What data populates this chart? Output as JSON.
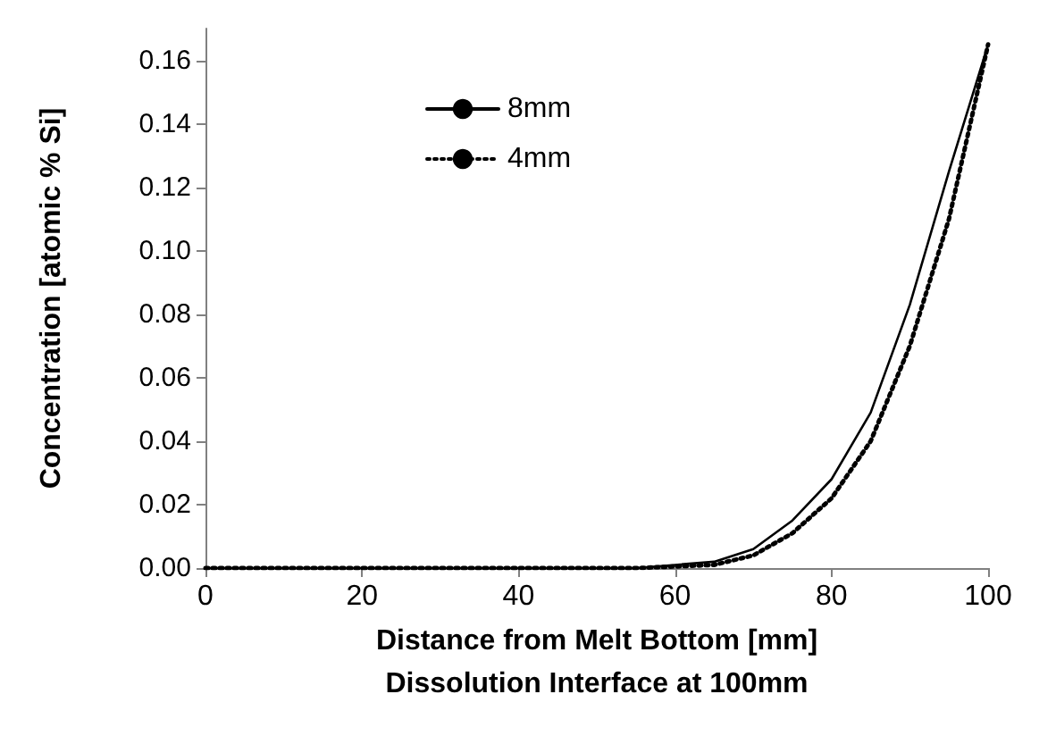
{
  "chart_data": {
    "type": "line",
    "xlabel": "Distance from Melt Bottom [mm]\nDissolution Interface at 100mm",
    "ylabel": "Concentration [atomic % Si]",
    "x": [
      0,
      10,
      20,
      30,
      40,
      50,
      55,
      60,
      65,
      70,
      75,
      80,
      85,
      90,
      95,
      100
    ],
    "series": [
      {
        "name": "8mm",
        "color": "#000000",
        "line_style": "solid",
        "values": [
          0,
          0,
          0,
          0,
          0,
          0,
          0,
          0.001,
          0.002,
          0.006,
          0.015,
          0.028,
          0.049,
          0.083,
          0.125,
          0.165
        ]
      },
      {
        "name": "4mm",
        "color": "#000000",
        "line_style": "dotted",
        "values": [
          0,
          0,
          0,
          0,
          0,
          0,
          0,
          0.0005,
          0.001,
          0.004,
          0.011,
          0.022,
          0.04,
          0.07,
          0.11,
          0.165
        ]
      }
    ],
    "xlim": [
      0,
      100
    ],
    "xticks": [
      0,
      20,
      40,
      60,
      80,
      100
    ],
    "ylim": [
      0,
      0.17
    ],
    "yticks": [
      {
        "value": 0,
        "label": "0.00"
      },
      {
        "value": 0.02,
        "label": "0.02"
      },
      {
        "value": 0.04,
        "label": "0.04"
      },
      {
        "value": 0.06,
        "label": "0.06"
      },
      {
        "value": 0.08,
        "label": "0.08"
      },
      {
        "value": 0.1,
        "label": "0.10"
      },
      {
        "value": 0.12,
        "label": "0.12"
      },
      {
        "value": 0.14,
        "label": "0.14"
      },
      {
        "value": 0.16,
        "label": "0.16"
      }
    ],
    "grid": false,
    "legend": "top",
    "marker": "none"
  }
}
